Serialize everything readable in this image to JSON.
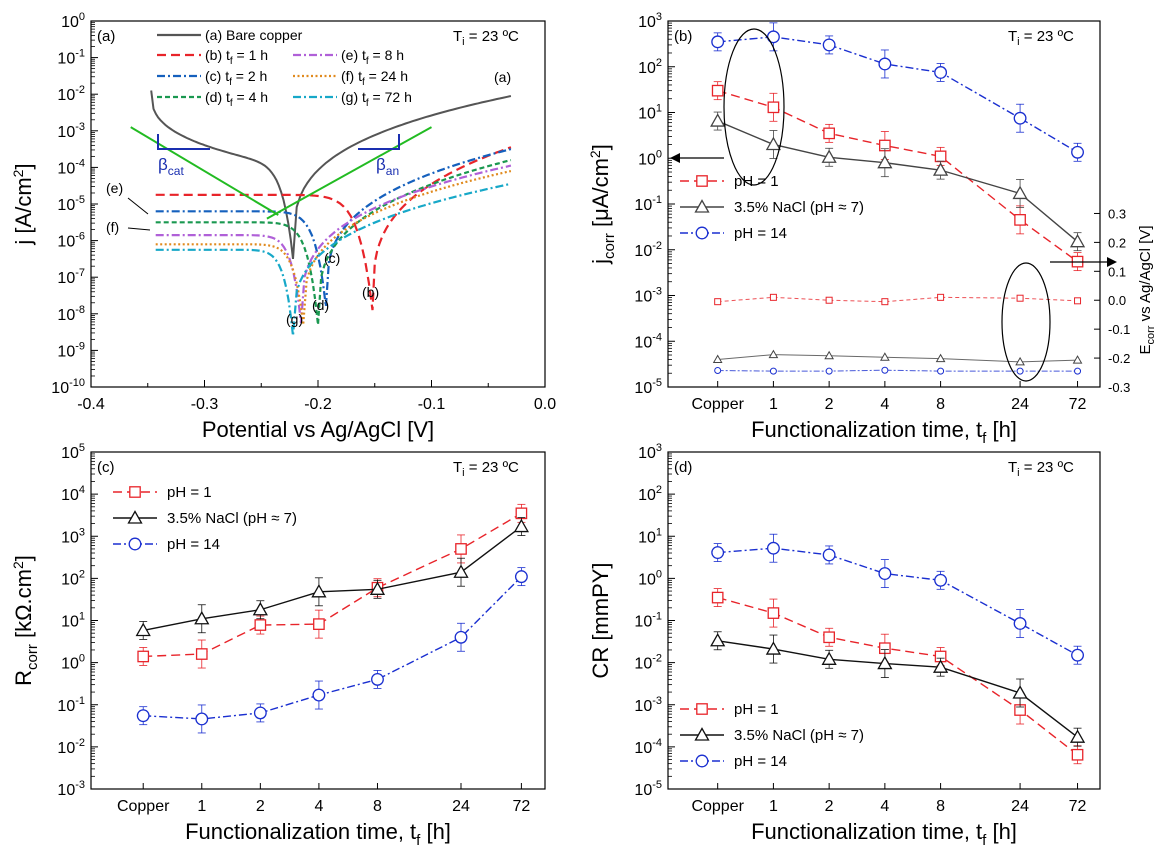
{
  "chart_data": [
    {
      "panel": "(a)",
      "type": "line",
      "annotation": "T",
      "annotation_sub": "i",
      "annotation_tail": " = 23 ºC",
      "xlabel": "Potential vs Ag/AgCl [V]",
      "ylabel_main": "j [A/cm",
      "ylabel_sup": "2",
      "ylabel_tail": "]",
      "xlim": [
        -0.4,
        0.0
      ],
      "ylim_log10": [
        -10,
        0
      ],
      "yscale": "log",
      "x_ticks": [
        "-0.4",
        "-0.3",
        "-0.2",
        "-0.1",
        "0.0"
      ],
      "y_ticks": [
        {
          "base": "10",
          "exp": "0"
        },
        {
          "base": "10",
          "exp": "-1"
        },
        {
          "base": "10",
          "exp": "-2"
        },
        {
          "base": "10",
          "exp": "-3"
        },
        {
          "base": "10",
          "exp": "-4"
        },
        {
          "base": "10",
          "exp": "-5"
        },
        {
          "base": "10",
          "exp": "-6"
        },
        {
          "base": "10",
          "exp": "-7"
        },
        {
          "base": "10",
          "exp": "-8"
        },
        {
          "base": "10",
          "exp": "-9"
        },
        {
          "base": "10",
          "exp": "-10"
        }
      ],
      "legend": [
        {
          "label": "(a) Bare copper",
          "color": "#555555",
          "dash": "solid"
        },
        {
          "label": "(b) t",
          "sub": "f",
          "tail": " =  1 h",
          "color": "#e8242a",
          "dash": "long"
        },
        {
          "label": "(c) t",
          "sub": "f",
          "tail": " =  2 h",
          "color": "#1560bd",
          "dash": "dashdot"
        },
        {
          "label": "(d) t",
          "sub": "f",
          "tail": " =  4 h",
          "color": "#1a9850",
          "dash": "short"
        },
        {
          "label": "(e) t",
          "sub": "f",
          "tail": " =   8 h",
          "color": "#b060d8",
          "dash": "dashdot"
        },
        {
          "label": "(f) t",
          "sub": "f",
          "tail": " = 24 h",
          "color": "#e08a1e",
          "dash": "dot"
        },
        {
          "label": "(g) t",
          "sub": "f",
          "tail": " = 72 h",
          "color": "#17a8c8",
          "dash": "dashdot"
        }
      ],
      "series": [
        {
          "id": "a",
          "E_corr": -0.222,
          "log_j0": -6.5,
          "ecat": -0.347,
          "eanod": -0.03,
          "cat_start_log": -1.9,
          "anod_end_log": -2.05,
          "kc": 14,
          "ka": 11
        },
        {
          "id": "b",
          "E_corr": -0.152,
          "log_j0": -7.9,
          "ecat": -0.343,
          "eanod": -0.03,
          "cat_start_log": -4.75,
          "anod_end_log": -3.45,
          "kc": 16,
          "ka": 16
        },
        {
          "id": "c",
          "E_corr": -0.193,
          "log_j0": -7.8,
          "ecat": -0.343,
          "eanod": -0.03,
          "cat_start_log": -5.2,
          "anod_end_log": -3.5,
          "kc": 16,
          "ka": 14
        },
        {
          "id": "d",
          "E_corr": -0.2,
          "log_j0": -8.3,
          "ecat": -0.343,
          "eanod": -0.03,
          "cat_start_log": -5.5,
          "anod_end_log": -3.8,
          "kc": 16,
          "ka": 14
        },
        {
          "id": "e",
          "E_corr": -0.215,
          "log_j0": -8.25,
          "ecat": -0.343,
          "eanod": -0.03,
          "cat_start_log": -5.85,
          "anod_end_log": -3.95,
          "kc": 16,
          "ka": 13
        },
        {
          "id": "f",
          "E_corr": -0.213,
          "log_j0": -8.3,
          "ecat": -0.343,
          "eanod": -0.03,
          "cat_start_log": -6.1,
          "anod_end_log": -4.1,
          "kc": 16,
          "ka": 13
        },
        {
          "id": "g",
          "E_corr": -0.222,
          "log_j0": -8.6,
          "ecat": -0.343,
          "eanod": -0.03,
          "cat_start_log": -6.25,
          "anod_end_log": -4.45,
          "kc": 16,
          "ka": 12
        }
      ],
      "tafel_lines": [
        {
          "x": [
            -0.365,
            -0.235
          ],
          "y_log": [
            -2.9,
            -5.3
          ],
          "color": "#22bb22"
        },
        {
          "x": [
            -0.245,
            -0.1
          ],
          "y_log": [
            -5.4,
            -2.9
          ],
          "color": "#22bb22"
        }
      ],
      "beta_labels": [
        {
          "text": "β",
          "sub": "cat",
          "color": "#1a2fb0"
        },
        {
          "text": "β",
          "sub": "an",
          "color": "#1a2fb0"
        }
      ],
      "curve_labels": [
        "(a)",
        "(b)",
        "(c)",
        "(d)",
        "(e)",
        "(f)",
        "(g)"
      ]
    },
    {
      "panel": "(b)",
      "type": "line",
      "annotation": "T",
      "annotation_sub": "i",
      "annotation_tail": " = 23 ºC",
      "categories": [
        "Copper",
        "1",
        "2",
        "4",
        "8",
        "24",
        "72"
      ],
      "xlabel_main": "Functionalization time, t",
      "xlabel_sub": "f",
      "xlabel_tail": " [h]",
      "ylabel_main": "j",
      "ylabel_sub": "corr",
      "ylabel_mid": " [μA/cm",
      "ylabel_sup": "2",
      "ylabel_tail": "]",
      "yscale": "log",
      "ylim_log10": [
        -5,
        3
      ],
      "y_ticks": [
        {
          "base": "10",
          "exp": "3"
        },
        {
          "base": "10",
          "exp": "2"
        },
        {
          "base": "10",
          "exp": "1"
        },
        {
          "base": "10",
          "exp": "0"
        },
        {
          "base": "10",
          "exp": "-1"
        },
        {
          "base": "10",
          "exp": "-2"
        },
        {
          "base": "10",
          "exp": "-3"
        },
        {
          "base": "10",
          "exp": "-4"
        },
        {
          "base": "10",
          "exp": "-5"
        }
      ],
      "right_axis": {
        "label_main": "E",
        "label_sub": "corr",
        "label_tail": " vs Ag/AgCl [V]",
        "ylim": [
          -0.3,
          0.35
        ],
        "ticks": [
          "0.3",
          "0.2",
          "0.1",
          "0.0",
          "-0.1",
          "-0.2",
          "-0.3"
        ]
      },
      "series": [
        {
          "name": "pH = 1",
          "color": "#e8242a",
          "dash": "long",
          "marker": "square",
          "values": [
            30,
            13,
            3.5,
            1.9,
            1.1,
            0.045,
            0.0055
          ]
        },
        {
          "name": "3.5% NaCl (pH ≈ 7)",
          "color": "#444444",
          "dash": "solid",
          "marker": "triangle",
          "values": [
            6.5,
            2.0,
            1.05,
            0.8,
            0.55,
            0.17,
            0.015
          ]
        },
        {
          "name": "pH = 14",
          "color": "#1a2fd0",
          "dash": "dashdot",
          "marker": "circle",
          "values": [
            350,
            450,
            300,
            115,
            75,
            7.5,
            1.35
          ]
        }
      ],
      "ecorr_series": [
        {
          "color": "#e8242a",
          "values": [
            -0.005,
            0.01,
            0.0,
            -0.005,
            0.01,
            0.007,
            -0.002
          ]
        },
        {
          "color": "#444444",
          "values": [
            -0.205,
            -0.188,
            -0.192,
            -0.197,
            -0.202,
            -0.213,
            -0.207
          ]
        },
        {
          "color": "#1a2fd0",
          "values": [
            -0.243,
            -0.245,
            -0.245,
            -0.242,
            -0.245,
            -0.245,
            -0.245
          ]
        }
      ]
    },
    {
      "panel": "(c)",
      "type": "line",
      "annotation": "T",
      "annotation_sub": "i",
      "annotation_tail": " = 23 ºC",
      "categories": [
        "Copper",
        "1",
        "2",
        "4",
        "8",
        "24",
        "72"
      ],
      "xlabel_main": "Functionalization time, t",
      "xlabel_sub": "f",
      "xlabel_tail": " [h]",
      "ylabel_main": "R",
      "ylabel_sub": "corr",
      "ylabel_mid": " [kΩ.cm",
      "ylabel_sup": "2",
      "ylabel_tail": "]",
      "yscale": "log",
      "ylim_log10": [
        -3,
        5
      ],
      "y_ticks": [
        {
          "base": "10",
          "exp": "5"
        },
        {
          "base": "10",
          "exp": "4"
        },
        {
          "base": "10",
          "exp": "3"
        },
        {
          "base": "10",
          "exp": "2"
        },
        {
          "base": "10",
          "exp": "1"
        },
        {
          "base": "10",
          "exp": "0"
        },
        {
          "base": "10",
          "exp": "-1"
        },
        {
          "base": "10",
          "exp": "-2"
        },
        {
          "base": "10",
          "exp": "-3"
        }
      ],
      "series": [
        {
          "name": "pH = 1",
          "color": "#e8242a",
          "dash": "long",
          "marker": "square",
          "values": [
            1.4,
            1.6,
            7.8,
            8.2,
            60,
            500,
            3500
          ]
        },
        {
          "name": "3.5% NaCl (pH ≈ 7)",
          "color": "#111111",
          "dash": "solid",
          "marker": "triangle",
          "values": [
            5.8,
            11,
            18,
            48,
            55,
            140,
            1700
          ]
        },
        {
          "name": "pH = 14",
          "color": "#1a2fd0",
          "dash": "dashdot",
          "marker": "circle",
          "values": [
            0.055,
            0.046,
            0.064,
            0.17,
            0.4,
            4.0,
            110
          ]
        }
      ]
    },
    {
      "panel": "(d)",
      "type": "line",
      "annotation": "T",
      "annotation_sub": "i",
      "annotation_tail": " = 23 ºC",
      "categories": [
        "Copper",
        "1",
        "2",
        "4",
        "8",
        "24",
        "72"
      ],
      "xlabel_main": "Functionalization time, t",
      "xlabel_sub": "f",
      "xlabel_tail": " [h]",
      "ylabel_main": "CR [mmPY]",
      "yscale": "log",
      "ylim_log10": [
        -5,
        3
      ],
      "y_ticks": [
        {
          "base": "10",
          "exp": "3"
        },
        {
          "base": "10",
          "exp": "2"
        },
        {
          "base": "10",
          "exp": "1"
        },
        {
          "base": "10",
          "exp": "0"
        },
        {
          "base": "10",
          "exp": "-1"
        },
        {
          "base": "10",
          "exp": "-2"
        },
        {
          "base": "10",
          "exp": "-3"
        },
        {
          "base": "10",
          "exp": "-4"
        },
        {
          "base": "10",
          "exp": "-5"
        }
      ],
      "series": [
        {
          "name": "pH = 1",
          "color": "#e8242a",
          "dash": "long",
          "marker": "square",
          "values": [
            0.35,
            0.15,
            0.04,
            0.022,
            0.014,
            0.00075,
            6.5e-05
          ]
        },
        {
          "name": "3.5% NaCl (pH ≈ 7)",
          "color": "#111111",
          "dash": "solid",
          "marker": "triangle",
          "values": [
            0.033,
            0.021,
            0.012,
            0.0095,
            0.0078,
            0.0019,
            0.00017
          ]
        },
        {
          "name": "pH = 14",
          "color": "#1a2fd0",
          "dash": "dashdot",
          "marker": "circle",
          "values": [
            4.1,
            5.2,
            3.6,
            1.3,
            0.9,
            0.085,
            0.015
          ]
        }
      ]
    }
  ]
}
